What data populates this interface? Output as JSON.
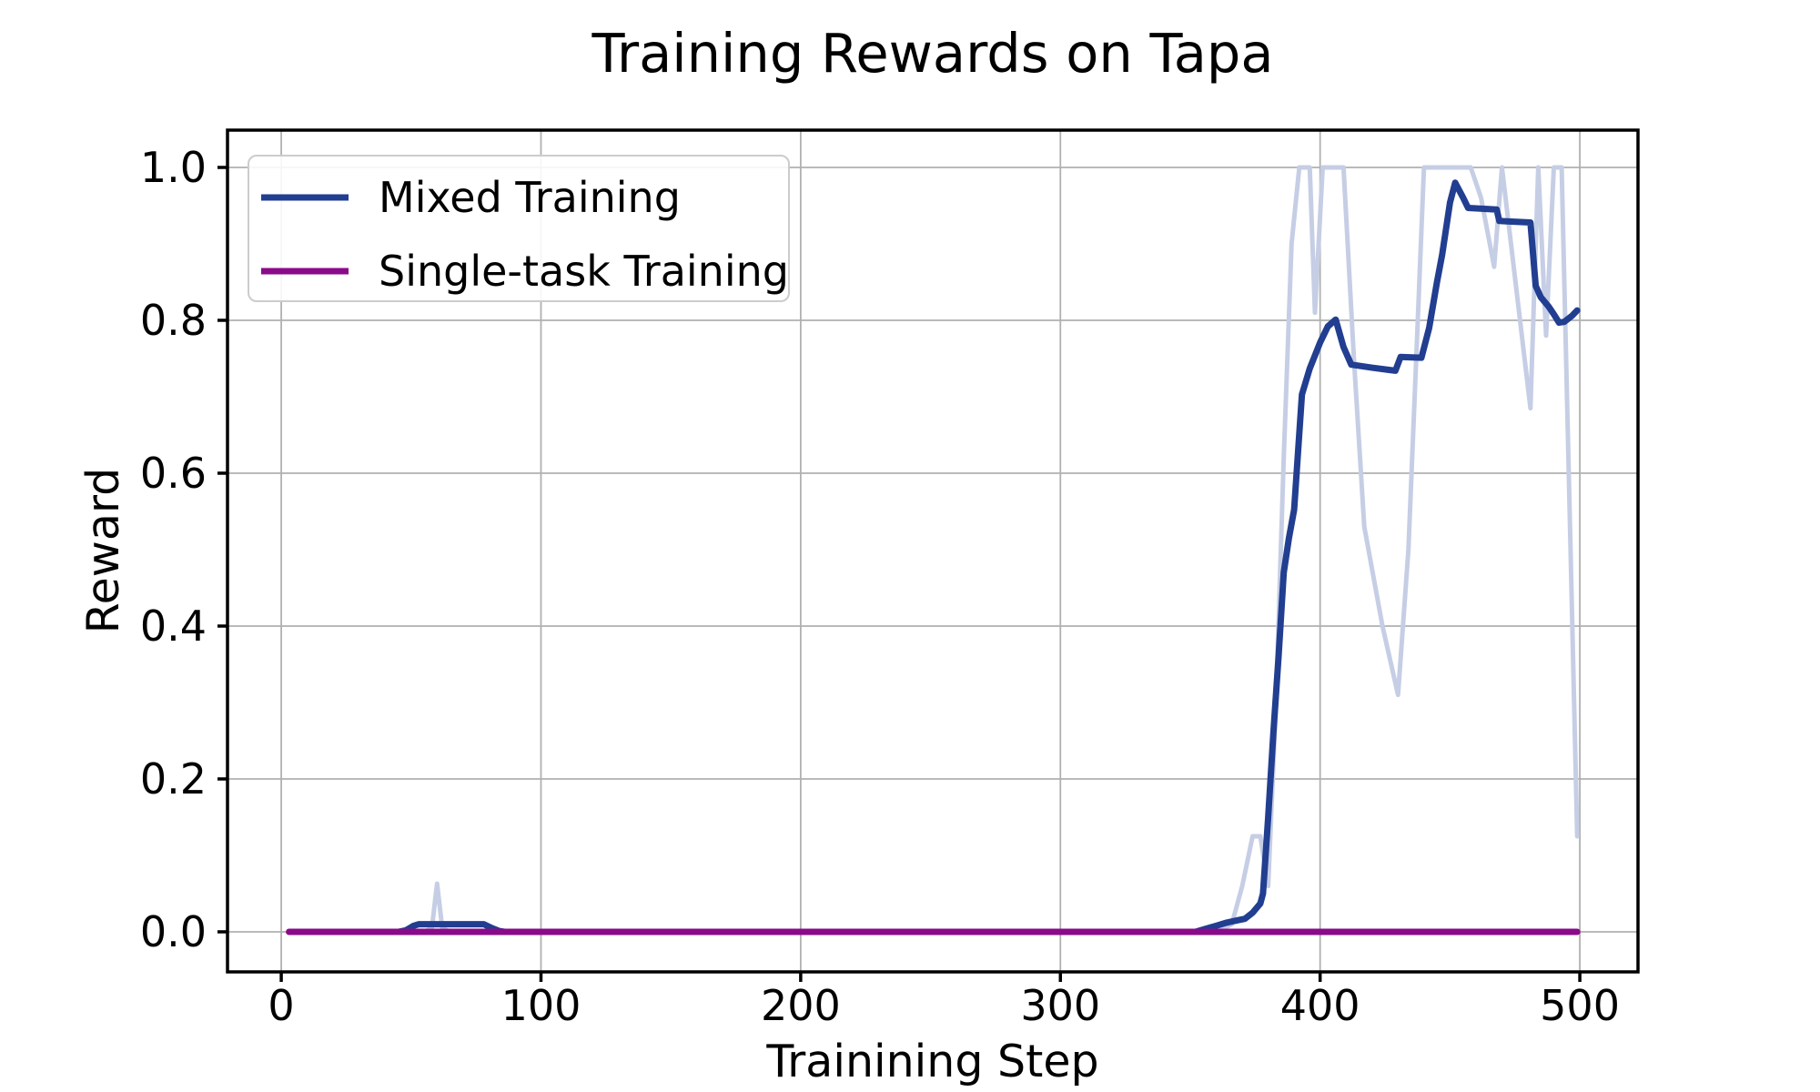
{
  "chart_data": {
    "type": "line",
    "title": "Training Rewards on Tapa",
    "xlabel": "Trainining Step",
    "ylabel": "Reward",
    "xlim": [
      -20.7,
      522.4
    ],
    "ylim": [
      -0.0524,
      1.0488
    ],
    "grid": true,
    "x_ticks": [
      0,
      100,
      200,
      300,
      400,
      500
    ],
    "x_tick_labels": [
      "0",
      "100",
      "200",
      "300",
      "400",
      "500"
    ],
    "y_ticks": [
      0.0,
      0.2,
      0.4,
      0.6,
      0.8,
      1.0
    ],
    "y_tick_labels": [
      "0.0",
      "0.2",
      "0.4",
      "0.6",
      "0.8",
      "1.0"
    ],
    "colors": {
      "mixed": "#213e90",
      "mixed_raw": "#c6cee5",
      "single_task": "#8a0a8a",
      "grid": "#b0b0b0"
    },
    "legend": {
      "position": "upper left",
      "entries": [
        {
          "label": "Mixed Training",
          "color": "#213e90"
        },
        {
          "label": "Single-task Training",
          "color": "#8a0a8a"
        }
      ]
    },
    "series": [
      {
        "name": "Mixed Training (raw, unsmoothed)",
        "color": "#c6cee5",
        "width": 5,
        "in_legend": false,
        "points": [
          [
            5,
            0
          ],
          [
            55,
            0
          ],
          [
            58,
            0.005
          ],
          [
            60,
            0.063
          ],
          [
            62,
            0.005
          ],
          [
            65,
            0
          ],
          [
            360,
            0
          ],
          [
            366,
            0.01
          ],
          [
            370,
            0.06
          ],
          [
            374,
            0.125
          ],
          [
            377,
            0.125
          ],
          [
            380,
            0.06
          ],
          [
            383,
            0.3
          ],
          [
            386,
            0.62
          ],
          [
            389,
            0.9
          ],
          [
            392,
            1.0
          ],
          [
            396,
            1.0
          ],
          [
            398,
            0.81
          ],
          [
            401,
            1.0
          ],
          [
            409,
            1.0
          ],
          [
            413,
            0.75
          ],
          [
            417,
            0.53
          ],
          [
            424,
            0.4
          ],
          [
            430,
            0.31
          ],
          [
            434,
            0.5
          ],
          [
            437,
            0.75
          ],
          [
            440,
            1.0
          ],
          [
            458,
            1.0
          ],
          [
            462,
            0.96
          ],
          [
            467,
            0.87
          ],
          [
            470,
            1.0
          ],
          [
            481,
            0.685
          ],
          [
            484,
            1.0
          ],
          [
            487,
            0.78
          ],
          [
            490,
            1.0
          ],
          [
            493,
            1.0
          ],
          [
            499,
            0.125
          ]
        ]
      },
      {
        "name": "Mixed Training",
        "color": "#213e90",
        "width": 7,
        "in_legend": true,
        "points": [
          [
            5,
            0
          ],
          [
            45,
            0
          ],
          [
            48,
            0.002
          ],
          [
            51,
            0.008
          ],
          [
            53,
            0.01
          ],
          [
            78,
            0.01
          ],
          [
            81,
            0.005
          ],
          [
            84,
            0.001
          ],
          [
            86,
            0
          ],
          [
            352,
            0
          ],
          [
            356,
            0.004
          ],
          [
            360,
            0.008
          ],
          [
            364,
            0.012
          ],
          [
            368,
            0.015
          ],
          [
            371,
            0.017
          ],
          [
            374,
            0.025
          ],
          [
            377,
            0.037
          ],
          [
            378,
            0.05
          ],
          [
            380,
            0.15
          ],
          [
            382,
            0.26
          ],
          [
            384,
            0.36
          ],
          [
            386,
            0.47
          ],
          [
            388,
            0.515
          ],
          [
            390,
            0.552
          ],
          [
            393,
            0.703
          ],
          [
            396,
            0.737
          ],
          [
            400,
            0.771
          ],
          [
            403,
            0.792
          ],
          [
            406,
            0.801
          ],
          [
            409,
            0.765
          ],
          [
            412,
            0.742
          ],
          [
            420,
            0.738
          ],
          [
            429,
            0.734
          ],
          [
            431,
            0.752
          ],
          [
            439,
            0.751
          ],
          [
            442,
            0.79
          ],
          [
            445,
            0.85
          ],
          [
            447,
            0.886
          ],
          [
            450,
            0.954
          ],
          [
            452,
            0.98
          ],
          [
            455,
            0.961
          ],
          [
            457,
            0.947
          ],
          [
            468,
            0.945
          ],
          [
            469,
            0.93
          ],
          [
            481,
            0.928
          ],
          [
            483,
            0.845
          ],
          [
            485,
            0.83
          ],
          [
            488,
            0.818
          ],
          [
            490,
            0.808
          ],
          [
            492,
            0.797
          ],
          [
            494,
            0.798
          ],
          [
            497,
            0.806
          ],
          [
            499,
            0.813
          ]
        ]
      },
      {
        "name": "Single-task Training",
        "color": "#8a0a8a",
        "width": 7,
        "in_legend": true,
        "points": [
          [
            3,
            0
          ],
          [
            499,
            0
          ]
        ]
      }
    ]
  }
}
